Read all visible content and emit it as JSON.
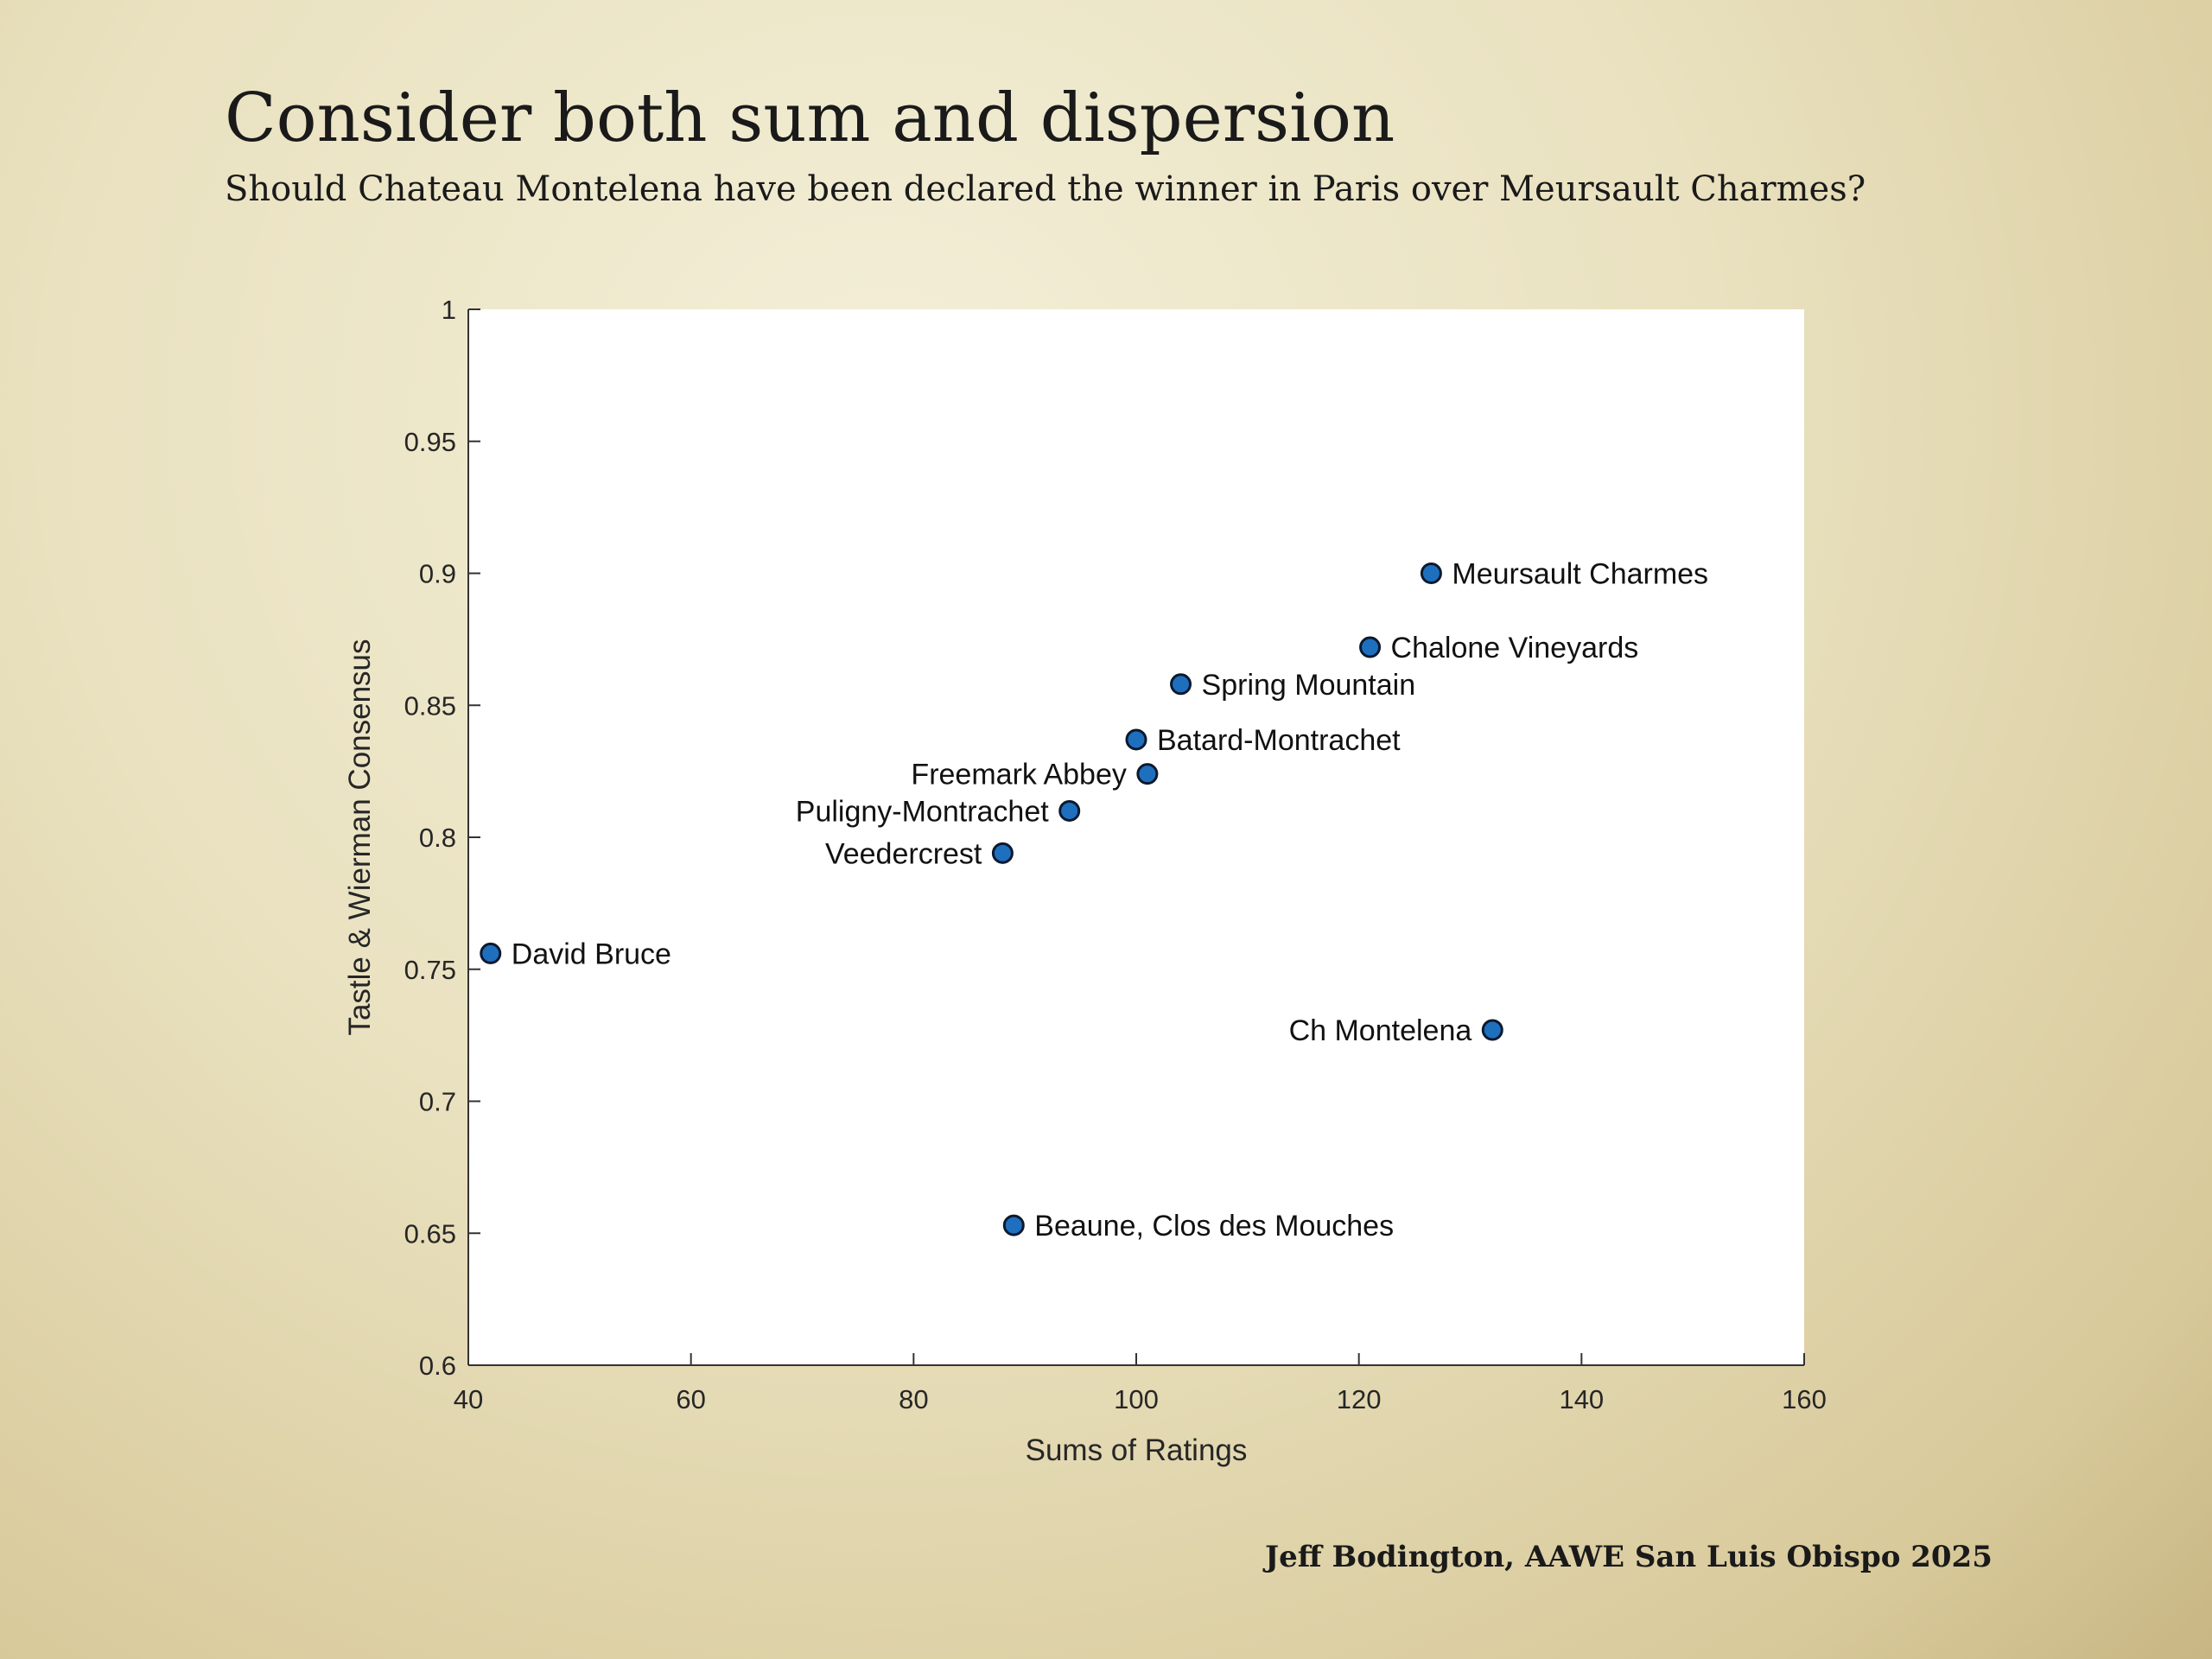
{
  "slide": {
    "title": "Consider both sum and dispersion",
    "subtitle": "Should Chateau Montelena have been declared the winner in Paris over Meursault Charmes?",
    "credit": "Jeff Bodington, AAWE San Luis Obispo 2025"
  },
  "colors": {
    "point_fill": "#1f6fbf",
    "point_stroke": "#0b1a2e",
    "plot_bg": "#ffffff",
    "axis": "#333333"
  },
  "chart_data": {
    "type": "scatter",
    "xlabel": "Sums of Ratings",
    "ylabel": "Tastle & Wierman Consensus",
    "xlim": [
      40,
      160
    ],
    "ylim": [
      0.6,
      1
    ],
    "xticks": [
      40,
      60,
      80,
      100,
      120,
      140,
      160
    ],
    "yticks": [
      0.6,
      0.65,
      0.7,
      0.75,
      0.8,
      0.85,
      0.9,
      0.95,
      1
    ],
    "xtick_labels": [
      "40",
      "60",
      "80",
      "100",
      "120",
      "140",
      "160"
    ],
    "ytick_labels": [
      "0.6",
      "0.65",
      "0.7",
      "0.75",
      "0.8",
      "0.85",
      "0.9",
      "0.95",
      "1"
    ],
    "grid": false,
    "points": [
      {
        "label": "Meursault Charmes",
        "x": 126.5,
        "y": 0.9,
        "label_side": "right"
      },
      {
        "label": "Chalone Vineyards",
        "x": 121,
        "y": 0.872,
        "label_side": "right"
      },
      {
        "label": "Spring Mountain",
        "x": 104,
        "y": 0.858,
        "label_side": "right"
      },
      {
        "label": "Batard-Montrachet",
        "x": 100,
        "y": 0.837,
        "label_side": "right"
      },
      {
        "label": "Freemark Abbey",
        "x": 101,
        "y": 0.824,
        "label_side": "left"
      },
      {
        "label": "Puligny-Montrachet",
        "x": 94,
        "y": 0.81,
        "label_side": "left"
      },
      {
        "label": "Veedercrest",
        "x": 88,
        "y": 0.794,
        "label_side": "left"
      },
      {
        "label": "David Bruce",
        "x": 42,
        "y": 0.756,
        "label_side": "right"
      },
      {
        "label": "Ch Montelena",
        "x": 132,
        "y": 0.727,
        "label_side": "left"
      },
      {
        "label": "Beaune, Clos des Mouches",
        "x": 89,
        "y": 0.653,
        "label_side": "right"
      }
    ]
  }
}
